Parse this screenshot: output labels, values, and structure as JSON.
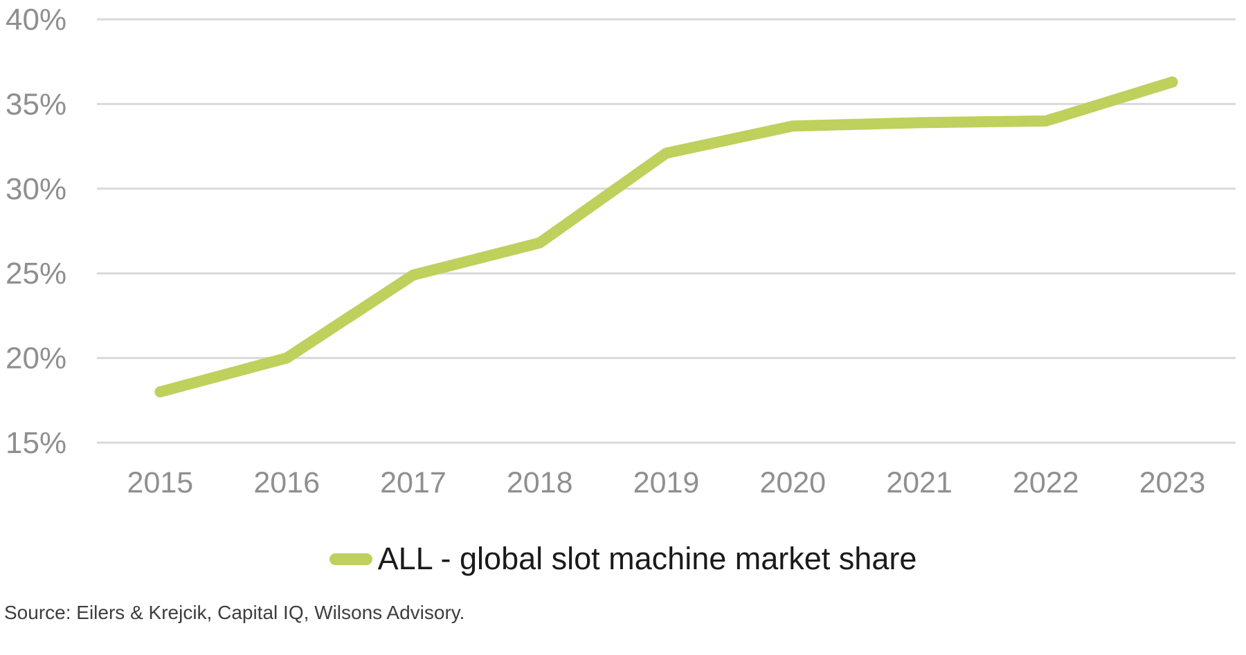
{
  "chart_data": {
    "type": "line",
    "categories": [
      "2015",
      "2016",
      "2017",
      "2018",
      "2019",
      "2020",
      "2021",
      "2022",
      "2023"
    ],
    "series": [
      {
        "name": "ALL - global slot machine market share",
        "values": [
          18.0,
          20.0,
          24.9,
          26.8,
          32.1,
          33.7,
          33.9,
          34.0,
          36.3
        ]
      }
    ],
    "title": "",
    "xlabel": "",
    "ylabel": "",
    "ylim": [
      15,
      40
    ],
    "ytick_step": 5,
    "ytick_labels": [
      "15%",
      "20%",
      "25%",
      "30%",
      "35%",
      "40%"
    ],
    "grid": "horizontal",
    "legend_position": "bottom-center",
    "colors": {
      "series_line": "#bfd05c",
      "gridline": "#d9d9d9",
      "tick_label": "#8f8f8f",
      "legend_text": "#1a1a1a"
    }
  },
  "footer": {
    "source": "Source: Eilers & Krejcik, Capital IQ, Wilsons Advisory."
  }
}
